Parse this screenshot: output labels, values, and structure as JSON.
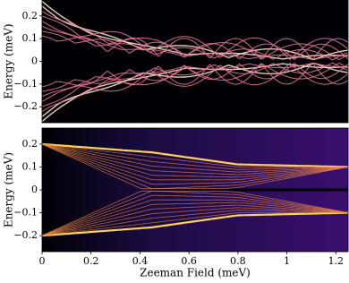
{
  "chart_data": [
    {
      "type": "heatmap",
      "ylabel": "Energy (meV)",
      "xlim": [
        0,
        1.25
      ],
      "ylim": [
        -0.27,
        0.27
      ],
      "yticks": [
        0.2,
        0.1,
        0,
        {
          "value": -0.1,
          "label": "−0.1"
        },
        {
          "value": -0.2,
          "label": "−0.2"
        }
      ]
    },
    {
      "type": "heatmap",
      "ylabel": "Energy (meV)",
      "xlabel": "Zeeman Field (meV)",
      "xlim": [
        0,
        1.25
      ],
      "ylim": [
        -0.27,
        0.27
      ],
      "yticks": [
        0.2,
        0.1,
        0,
        {
          "value": -0.1,
          "label": "−0.1"
        },
        {
          "value": -0.2,
          "label": "−0.2"
        }
      ],
      "xticks": [
        0,
        0.2,
        0.4,
        0.6,
        0.8,
        1,
        1.2
      ]
    }
  ]
}
